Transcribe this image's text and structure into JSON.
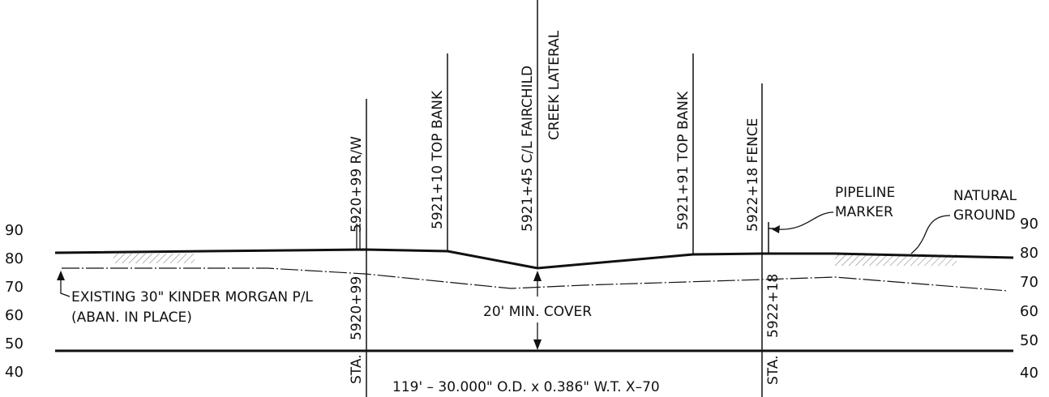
{
  "elevations_left": [
    "90",
    "80",
    "70",
    "60",
    "50",
    "40"
  ],
  "elevations_right": [
    "90",
    "80",
    "70",
    "60",
    "50",
    "40"
  ],
  "callouts": {
    "rw": "5920+99 R/W",
    "top_bank_1": "5921+10 TOP BANK",
    "centerline_1": "5921+45 C/L FAIRCHILD",
    "centerline_2": "CREEK LATERAL",
    "top_bank_2": "5921+91 TOP BANK",
    "fence": "5922+18 FENCE"
  },
  "stations": {
    "left_value": "5920+99",
    "left_prefix": "STA.",
    "right_value": "5922+18",
    "right_prefix": "STA."
  },
  "labels": {
    "pipeline_marker_1": "PIPELINE",
    "pipeline_marker_2": "MARKER",
    "natural_ground_1": "NATURAL",
    "natural_ground_2": "GROUND",
    "existing_pipe_1": "EXISTING 30\" KINDER MORGAN P/L",
    "existing_pipe_2": "(ABAN. IN PLACE)",
    "min_cover": "20' MIN. COVER",
    "pipe_spec": "119' – 30.000\" O.D. x 0.386\" W.T. X–70"
  }
}
